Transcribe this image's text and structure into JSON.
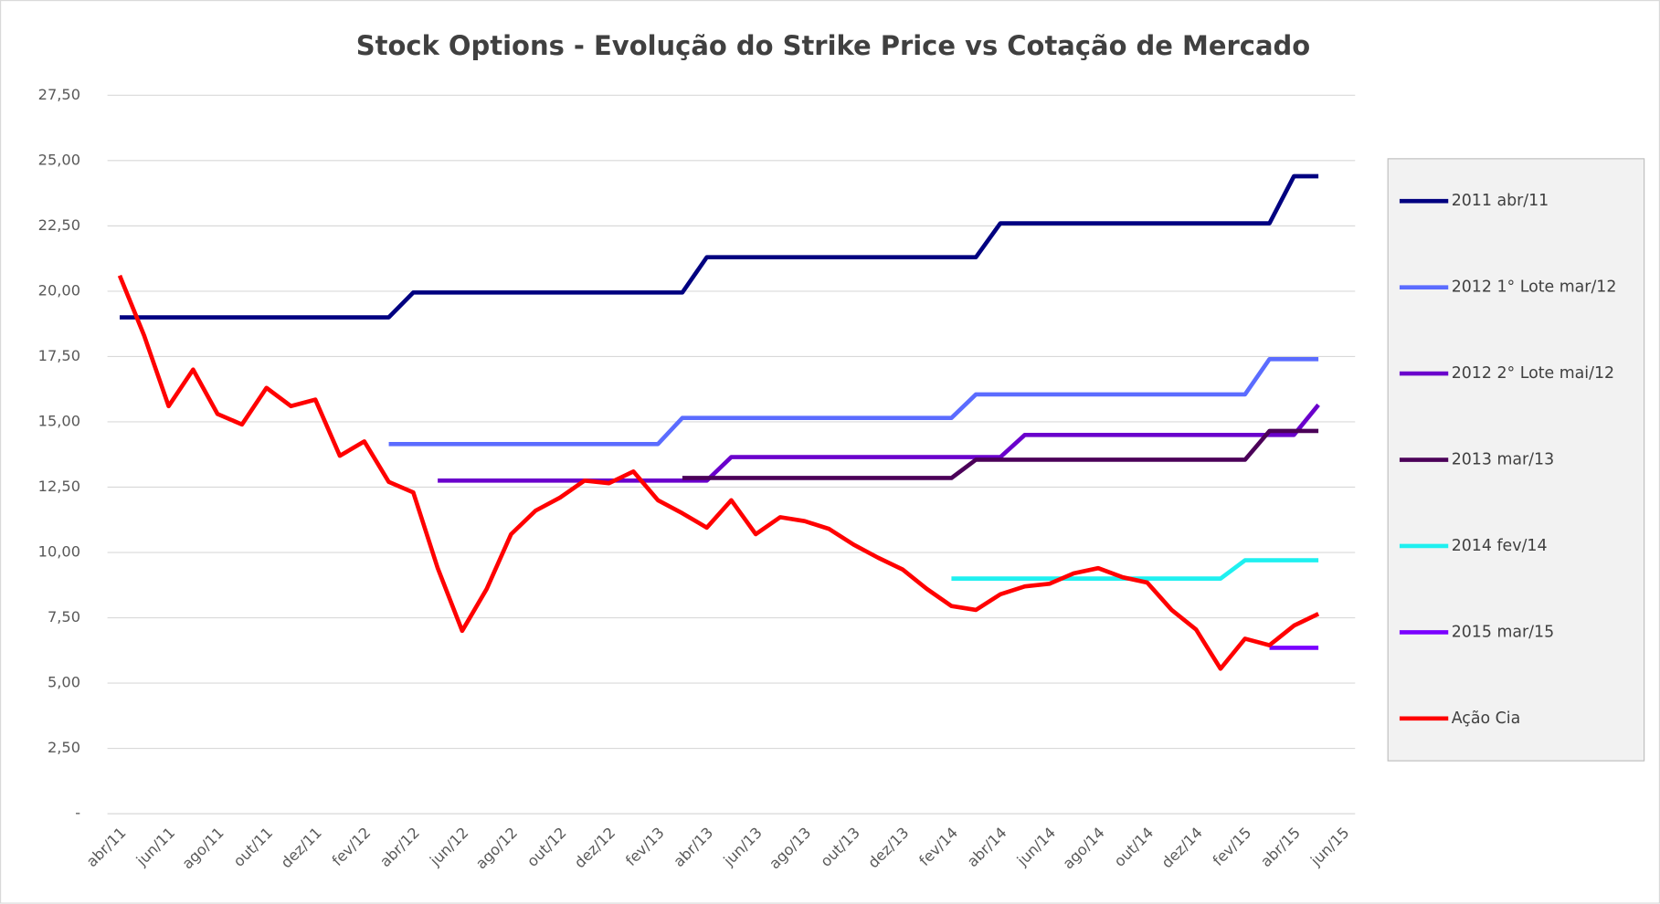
{
  "chart_data": {
    "type": "line",
    "title": "Stock Options - Evolução do Strike Price vs Cotação de Mercado",
    "categories": [
      "abr/11",
      null,
      "jun/11",
      null,
      "ago/11",
      null,
      "out/11",
      null,
      "dez/11",
      null,
      "fev/12",
      null,
      "abr/12",
      null,
      "jun/12",
      null,
      "ago/12",
      null,
      "out/12",
      null,
      "dez/12",
      null,
      "fev/13",
      null,
      "abr/13",
      null,
      "jun/13",
      null,
      "ago/13",
      null,
      "out/13",
      null,
      "dez/13",
      null,
      "fev/14",
      null,
      "abr/14",
      null,
      "jun/14",
      null,
      "ago/14",
      null,
      "out/14",
      null,
      "dez/14",
      null,
      "fev/15",
      null,
      "abr/15",
      null,
      "jun/15"
    ],
    "ylim": [
      0,
      27.5
    ],
    "yticks": [
      {
        "value": 0,
        "label": "-"
      },
      {
        "value": 2.5,
        "label": "2,50"
      },
      {
        "value": 5,
        "label": "5,00"
      },
      {
        "value": 7.5,
        "label": "7,50"
      },
      {
        "value": 10,
        "label": "10,00"
      },
      {
        "value": 12.5,
        "label": "12,50"
      },
      {
        "value": 15,
        "label": "15,00"
      },
      {
        "value": 17.5,
        "label": "17,50"
      },
      {
        "value": 20,
        "label": "20,00"
      },
      {
        "value": 22.5,
        "label": "22,50"
      },
      {
        "value": 25,
        "label": "25,00"
      },
      {
        "value": 27.5,
        "label": "27,50"
      }
    ],
    "grid": true,
    "legend": "right",
    "series": [
      {
        "name": "2011 abr/11",
        "color": "#000080",
        "values": [
          19,
          19,
          19,
          19,
          19,
          19,
          19,
          19,
          19,
          19,
          19,
          19,
          19.95,
          19.95,
          19.95,
          19.95,
          19.95,
          19.95,
          19.95,
          19.95,
          19.95,
          19.95,
          19.95,
          19.95,
          21.3,
          21.3,
          21.3,
          21.3,
          21.3,
          21.3,
          21.3,
          21.3,
          21.3,
          21.3,
          21.3,
          21.3,
          22.6,
          22.6,
          22.6,
          22.6,
          22.6,
          22.6,
          22.6,
          22.6,
          22.6,
          22.6,
          22.6,
          22.6,
          24.4,
          24.4,
          null
        ]
      },
      {
        "name": "2012 1° Lote mar/12",
        "color": "#5b6cff",
        "values": [
          null,
          null,
          null,
          null,
          null,
          null,
          null,
          null,
          null,
          null,
          null,
          14.15,
          14.15,
          14.15,
          14.15,
          14.15,
          14.15,
          14.15,
          14.15,
          14.15,
          14.15,
          14.15,
          14.15,
          15.15,
          15.15,
          15.15,
          15.15,
          15.15,
          15.15,
          15.15,
          15.15,
          15.15,
          15.15,
          15.15,
          15.15,
          16.05,
          16.05,
          16.05,
          16.05,
          16.05,
          16.05,
          16.05,
          16.05,
          16.05,
          16.05,
          16.05,
          16.05,
          17.4,
          17.4,
          17.4,
          null
        ]
      },
      {
        "name": "2012 2° Lote mai/12",
        "color": "#6a00cc",
        "values": [
          null,
          null,
          null,
          null,
          null,
          null,
          null,
          null,
          null,
          null,
          null,
          null,
          null,
          12.75,
          12.75,
          12.75,
          12.75,
          12.75,
          12.75,
          12.75,
          12.75,
          12.75,
          12.75,
          12.75,
          12.75,
          13.65,
          13.65,
          13.65,
          13.65,
          13.65,
          13.65,
          13.65,
          13.65,
          13.65,
          13.65,
          13.65,
          13.65,
          14.5,
          14.5,
          14.5,
          14.5,
          14.5,
          14.5,
          14.5,
          14.5,
          14.5,
          14.5,
          14.5,
          14.5,
          15.65,
          null
        ]
      },
      {
        "name": "2013 mar/13",
        "color": "#4b0058",
        "values": [
          null,
          null,
          null,
          null,
          null,
          null,
          null,
          null,
          null,
          null,
          null,
          null,
          null,
          null,
          null,
          null,
          null,
          null,
          null,
          null,
          null,
          null,
          null,
          12.85,
          12.85,
          12.85,
          12.85,
          12.85,
          12.85,
          12.85,
          12.85,
          12.85,
          12.85,
          12.85,
          12.85,
          13.55,
          13.55,
          13.55,
          13.55,
          13.55,
          13.55,
          13.55,
          13.55,
          13.55,
          13.55,
          13.55,
          13.55,
          14.65,
          14.65,
          14.65,
          null
        ]
      },
      {
        "name": "2014 fev/14",
        "color": "#1ff0f0",
        "values": [
          null,
          null,
          null,
          null,
          null,
          null,
          null,
          null,
          null,
          null,
          null,
          null,
          null,
          null,
          null,
          null,
          null,
          null,
          null,
          null,
          null,
          null,
          null,
          null,
          null,
          null,
          null,
          null,
          null,
          null,
          null,
          null,
          null,
          null,
          9,
          9,
          9,
          9,
          9,
          9,
          9,
          9,
          9,
          9,
          9,
          9,
          9.7,
          9.7,
          9.7,
          9.7,
          null
        ]
      },
      {
        "name": "2015 mar/15",
        "color": "#7a00ff",
        "values": [
          null,
          null,
          null,
          null,
          null,
          null,
          null,
          null,
          null,
          null,
          null,
          null,
          null,
          null,
          null,
          null,
          null,
          null,
          null,
          null,
          null,
          null,
          null,
          null,
          null,
          null,
          null,
          null,
          null,
          null,
          null,
          null,
          null,
          null,
          null,
          null,
          null,
          null,
          null,
          null,
          null,
          null,
          null,
          null,
          null,
          null,
          null,
          6.35,
          6.35,
          6.35,
          null
        ]
      },
      {
        "name": "Ação Cia",
        "color": "#ff0000",
        "values": [
          20.6,
          18.3,
          15.6,
          17,
          15.3,
          14.9,
          16.3,
          15.6,
          15.85,
          13.7,
          14.25,
          12.7,
          12.3,
          9.4,
          7,
          8.6,
          10.7,
          11.6,
          12.1,
          12.75,
          12.65,
          13.1,
          12,
          11.5,
          10.95,
          12,
          10.7,
          11.35,
          11.2,
          10.9,
          10.3,
          9.8,
          9.35,
          8.6,
          7.95,
          7.8,
          8.4,
          8.7,
          8.8,
          9.2,
          9.4,
          9.05,
          8.85,
          7.8,
          7.05,
          5.55,
          6.7,
          6.45,
          7.2,
          7.65,
          null
        ]
      }
    ]
  }
}
